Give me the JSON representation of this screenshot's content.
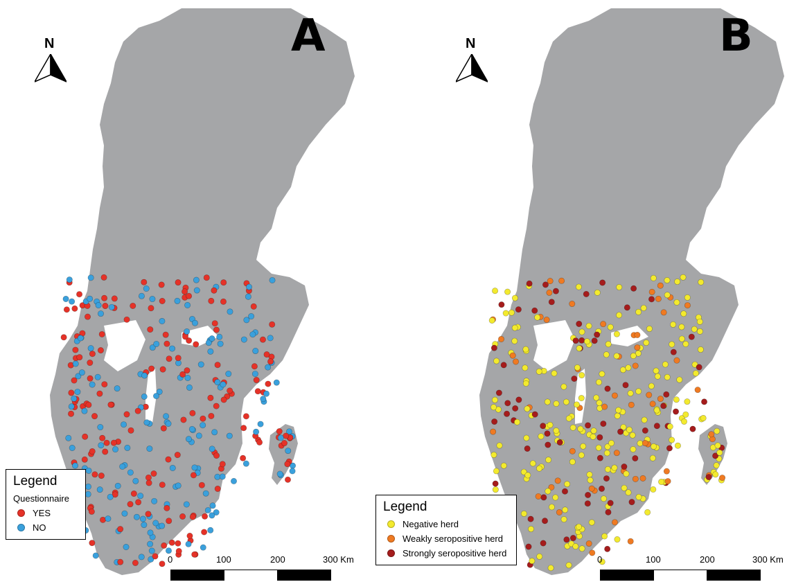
{
  "panels": [
    {
      "id": "A",
      "label": "A",
      "north_label": "N",
      "legend": {
        "title": "Legend",
        "subtitle": "Questionnaire",
        "entries": [
          {
            "label": "YES",
            "color": "#e53228"
          },
          {
            "label": "NO",
            "color": "#3aa0dc"
          }
        ]
      },
      "scale": {
        "labels": [
          "0",
          "100",
          "200",
          "300 Km"
        ]
      },
      "point_colors": [
        "#e53228",
        "#3aa0dc"
      ]
    },
    {
      "id": "B",
      "label": "B",
      "north_label": "N",
      "legend": {
        "title": "Legend",
        "subtitle": "",
        "entries": [
          {
            "label": "Negative herd",
            "color": "#f3ea2e"
          },
          {
            "label": "Weakly seropositive herd",
            "color": "#ef7a22"
          },
          {
            "label": "Strongly seropositive herd",
            "color": "#a51c1c"
          }
        ]
      },
      "scale": {
        "labels": [
          "0",
          "100",
          "200",
          "300 Km"
        ]
      },
      "point_colors": [
        "#f3ea2e",
        "#f3ea2e",
        "#f3ea2e",
        "#f3ea2e",
        "#ef7a22",
        "#a51c1c"
      ]
    }
  ],
  "map_color": "#a5a6a8"
}
